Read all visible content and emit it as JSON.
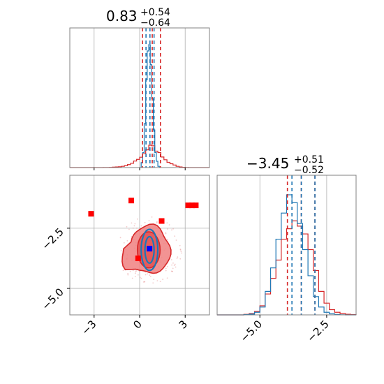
{
  "chart_data": [
    {
      "type": "histogram",
      "panel": "marginal-param-1",
      "title": {
        "median": "0.83",
        "plus": "+0.54",
        "minus": "−0.64"
      },
      "xlim": [
        -4.6,
        4.6
      ],
      "grid": true,
      "bin_edges": [
        -2.4,
        -2.2,
        -2.0,
        -1.8,
        -1.6,
        -1.4,
        -1.2,
        -1.0,
        -0.8,
        -0.6,
        -0.4,
        -0.2,
        0.0,
        0.2,
        0.4,
        0.6,
        0.8,
        1.0,
        1.2,
        1.4,
        1.6,
        1.8,
        2.0,
        2.2,
        2.4,
        2.6,
        2.8,
        3.0,
        3.2
      ],
      "series": [
        {
          "color": "#d62728",
          "density": [
            0.001,
            0.001,
            0.002,
            0.004,
            0.006,
            0.008,
            0.012,
            0.018,
            0.028,
            0.04,
            0.062,
            0.078,
            0.098,
            0.132,
            0.168,
            0.212,
            0.206,
            0.156,
            0.142,
            0.1,
            0.074,
            0.05,
            0.036,
            0.024,
            0.012,
            0.006,
            0.003,
            0.001
          ]
        },
        {
          "color": "#1f77b4",
          "bin_edges": [
            0.1,
            0.2,
            0.3,
            0.4,
            0.5,
            0.6,
            0.7,
            0.8,
            0.9,
            1.0,
            1.1,
            1.2,
            1.3
          ],
          "density": [
            0.04,
            0.12,
            0.35,
            0.7,
            0.93,
            0.98,
            0.82,
            0.55,
            0.3,
            0.12,
            0.05,
            0.01
          ]
        }
      ],
      "quantile_lines": [
        {
          "color": "#d62728",
          "values": [
            0.19,
            0.83,
            1.37
          ]
        },
        {
          "color": "#1f77b4",
          "values": [
            0.42,
            0.68,
            0.95
          ]
        }
      ]
    },
    {
      "type": "histogram",
      "panel": "marginal-param-2",
      "title": {
        "median": "−3.45",
        "plus": "+0.51",
        "minus": "−0.52"
      },
      "xlim": [
        -6.6,
        -1.4
      ],
      "xticks": [
        "−5.0",
        "−2.5"
      ],
      "grid": true,
      "bin_edges": [
        -5.6,
        -5.4,
        -5.2,
        -5.0,
        -4.8,
        -4.6,
        -4.4,
        -4.2,
        -4.0,
        -3.8,
        -3.6,
        -3.4,
        -3.2,
        -3.0,
        -2.8,
        -2.6,
        -2.4,
        -2.2,
        -2.0,
        -1.8,
        -1.6,
        -1.4
      ],
      "series": [
        {
          "color": "#d62728",
          "density": [
            0.004,
            0.01,
            0.026,
            0.07,
            0.16,
            0.28,
            0.42,
            0.58,
            0.66,
            0.72,
            0.68,
            0.62,
            0.5,
            0.34,
            0.18,
            0.09,
            0.04,
            0.02,
            0.01,
            0.005,
            0.002
          ]
        },
        {
          "color": "#1f77b4",
          "density": [
            0.002,
            0.006,
            0.02,
            0.06,
            0.18,
            0.36,
            0.58,
            0.78,
            0.92,
            0.86,
            0.7,
            0.5,
            0.3,
            0.14,
            0.06,
            0.02,
            0.008,
            0.003,
            0.001,
            0,
            0
          ]
        }
      ],
      "quantile_lines": [
        {
          "color": "#d62728",
          "values": [
            -3.97,
            -3.45,
            -2.94
          ]
        },
        {
          "color": "#1f77b4",
          "values": [
            -3.8,
            -3.45,
            -2.94
          ]
        }
      ]
    },
    {
      "type": "scatter",
      "panel": "joint-param1-param2",
      "xlim": [
        -4.6,
        4.6
      ],
      "ylim": [
        -6.1,
        -0.3
      ],
      "xticks": [
        "−3",
        "0",
        "3"
      ],
      "yticks": [
        "−2.5",
        "−5.0"
      ],
      "grid": true,
      "contours": [
        {
          "color": "#d62728",
          "fill": "#f08080",
          "level": "outer",
          "cx": 0.65,
          "cy": -3.4,
          "rx": 1.35,
          "ry": 1.0
        },
        {
          "color": "#d62728",
          "fill": "#e35555",
          "level": "inner",
          "cx": 0.6,
          "cy": -3.4,
          "rx": 0.75,
          "ry": 0.75
        },
        {
          "color": "#1f77b4",
          "fill": "none",
          "level": "outer",
          "cx": 0.65,
          "cy": -3.4,
          "rx": 0.55,
          "ry": 0.85
        },
        {
          "color": "#1f77b4",
          "fill": "none",
          "level": "inner",
          "cx": 0.65,
          "cy": -3.4,
          "rx": 0.3,
          "ry": 0.55
        }
      ],
      "points": [
        {
          "x": -0.55,
          "y": -1.35,
          "color": "#ff0000"
        },
        {
          "x": -3.2,
          "y": -1.9,
          "color": "#ff0000"
        },
        {
          "x": 3.2,
          "y": -1.55,
          "color": "#ff0000"
        },
        {
          "x": 3.45,
          "y": -1.55,
          "color": "#ff0000"
        },
        {
          "x": 3.7,
          "y": -1.55,
          "color": "#ff0000"
        },
        {
          "x": 1.45,
          "y": -2.2,
          "color": "#ff0000"
        },
        {
          "x": -0.1,
          "y": -3.75,
          "color": "#ff0000"
        },
        {
          "x": 0.65,
          "y": -3.35,
          "color": "#0000ff"
        }
      ]
    }
  ]
}
